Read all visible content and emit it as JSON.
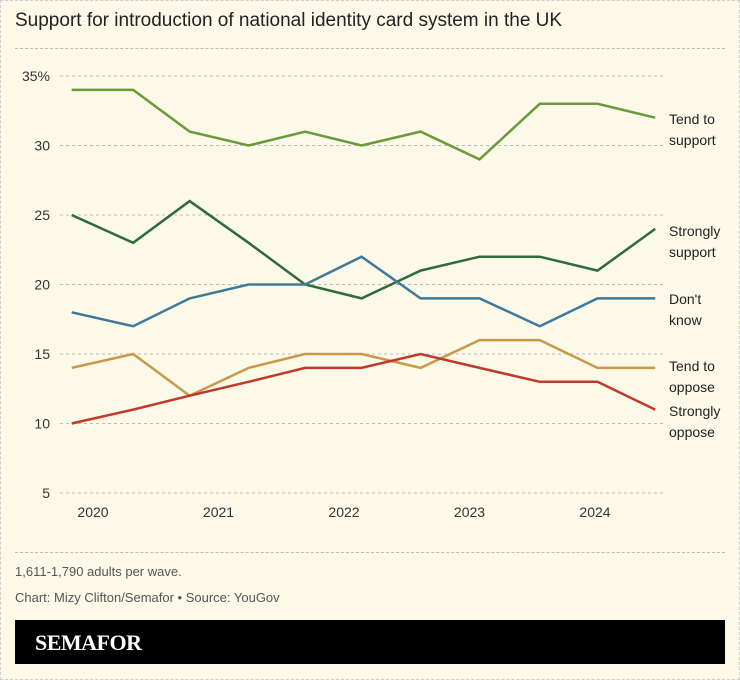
{
  "chart_data": {
    "type": "line",
    "title": "Support for introduction of national identity card system in the UK",
    "ylim": [
      5,
      35
    ],
    "yticks": [
      5,
      10,
      15,
      20,
      25,
      30,
      35
    ],
    "ytick_labels": [
      "5",
      "10",
      "15",
      "20",
      "25",
      "30",
      "35%"
    ],
    "xticks": [
      2020,
      2021,
      2022,
      2023,
      2024
    ],
    "xtick_labels": [
      "2020",
      "2021",
      "2022",
      "2023",
      "2024"
    ],
    "grid": true,
    "x": [
      2019.83,
      2020.32,
      2020.77,
      2021.24,
      2021.69,
      2022.14,
      2022.61,
      2023.08,
      2023.56,
      2024.02,
      2024.48
    ],
    "series": [
      {
        "name": "Tend to support",
        "label_lines": [
          "Tend to",
          "support"
        ],
        "color": "#6b9a3a",
        "values": [
          34,
          34,
          31,
          30,
          31,
          30,
          31,
          29,
          33,
          33,
          32
        ]
      },
      {
        "name": "Strongly support",
        "label_lines": [
          "Strongly",
          "support"
        ],
        "color": "#2f6b3a",
        "values": [
          25,
          23,
          26,
          23,
          20,
          19,
          21,
          22,
          22,
          21,
          24
        ]
      },
      {
        "name": "Don't know",
        "label_lines": [
          "Don't",
          "know"
        ],
        "color": "#3f7a9a",
        "values": [
          18,
          17,
          19,
          20,
          20,
          22,
          19,
          19,
          17,
          19,
          19
        ]
      },
      {
        "name": "Tend to oppose",
        "label_lines": [
          "Tend to",
          "oppose"
        ],
        "color": "#c9994a",
        "values": [
          14,
          15,
          12,
          14,
          15,
          15,
          14,
          16,
          16,
          14,
          14
        ]
      },
      {
        "name": "Strongly oppose",
        "label_lines": [
          "Strongly",
          "oppose"
        ],
        "color": "#c0392b",
        "values": [
          10,
          11,
          12,
          13,
          14,
          14,
          15,
          14,
          13,
          13,
          11
        ]
      }
    ]
  },
  "footer": {
    "note": "1,611-1,790 adults per wave.",
    "credit": "Chart: Mizy Clifton/Semafor • Source: YouGov",
    "logo": "SEMAFOR"
  }
}
